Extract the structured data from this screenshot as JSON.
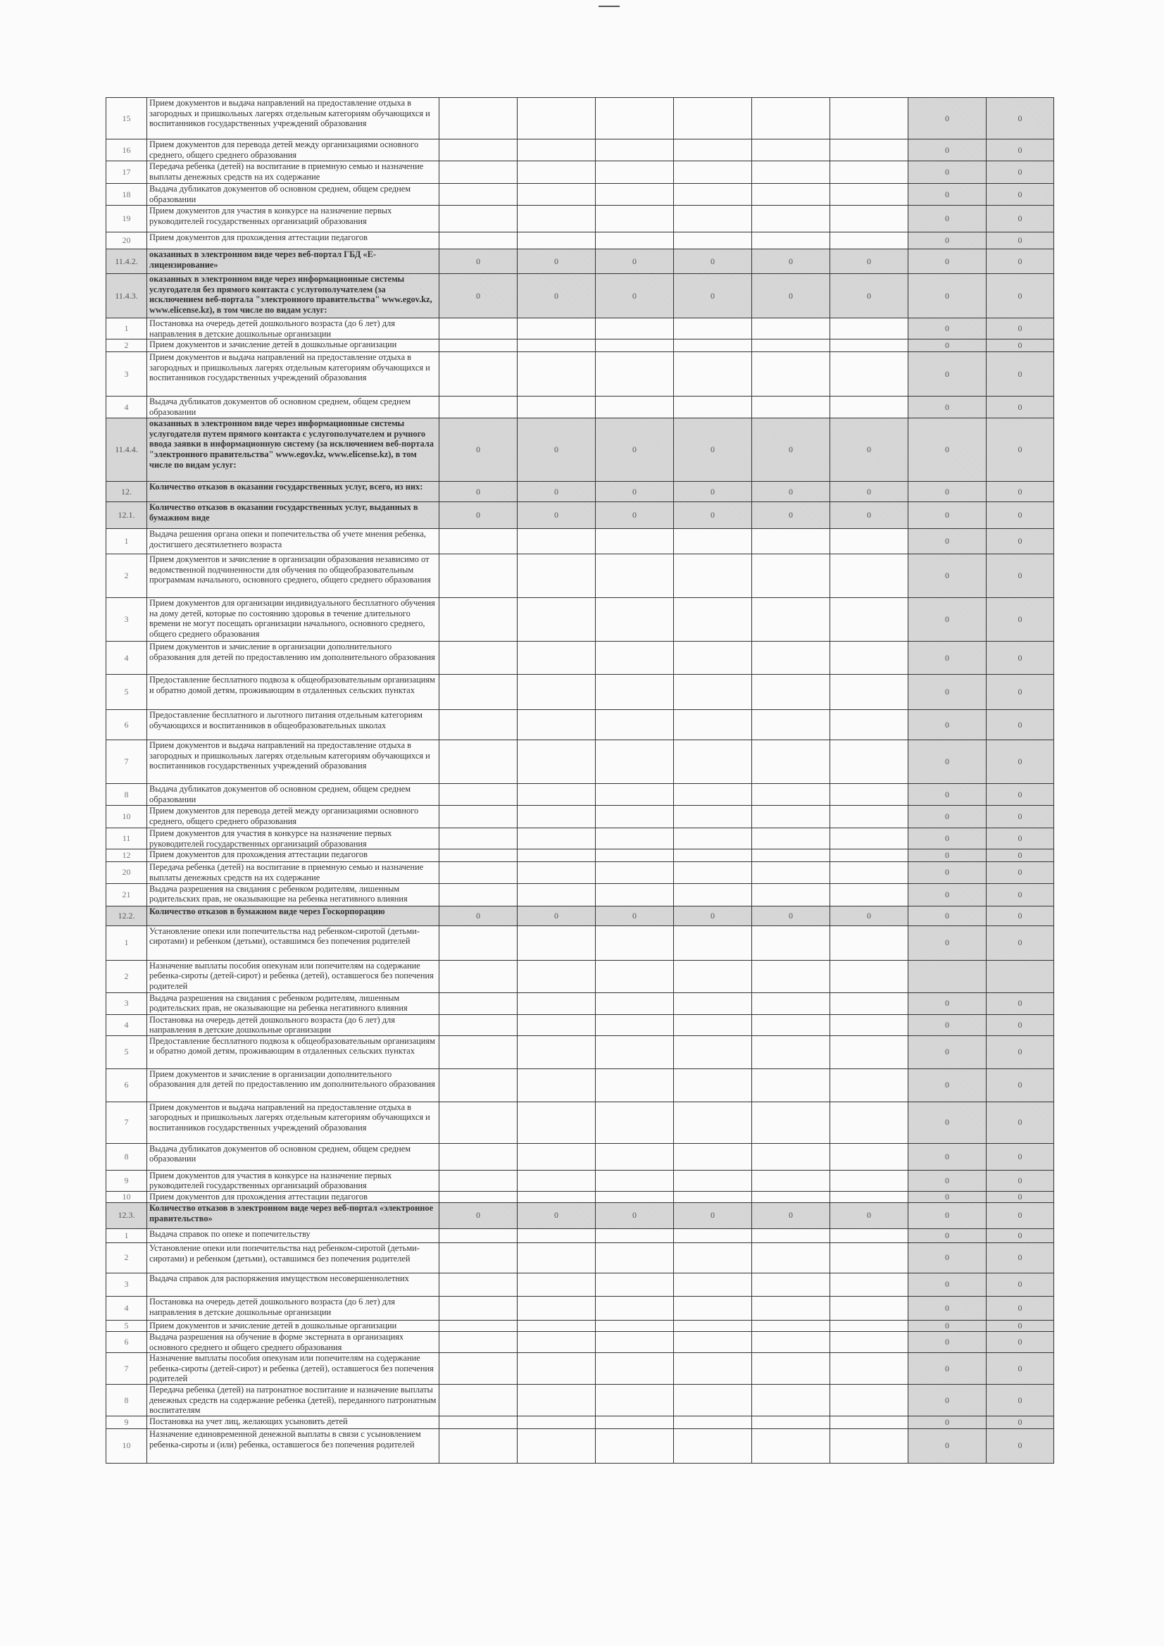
{
  "table": {
    "rows": [
      {
        "num": "15",
        "text": "Прием документов и выдача направлений на  предоставление отдыха в загородных и пришкольных лагерях отдельным категориям обучающихся и воспитанников государственных учреждений образования",
        "header": false,
        "values": [
          "",
          "",
          "",
          "",
          "",
          "",
          "0",
          "0"
        ]
      },
      {
        "num": "16",
        "text": "Прием документов для перевода детей между организациями основного среднего, общего среднего образования",
        "header": false,
        "values": [
          "",
          "",
          "",
          "",
          "",
          "",
          "0",
          "0"
        ]
      },
      {
        "num": "17",
        "text": "Передача ребенка (детей) на воспитание в приемную семью и назначение выплаты денежных средств на их содержание",
        "header": false,
        "values": [
          "",
          "",
          "",
          "",
          "",
          "",
          "0",
          "0"
        ]
      },
      {
        "num": "18",
        "text": "Выдача дубликатов документов об основном среднем, общем среднем образовании",
        "header": false,
        "values": [
          "",
          "",
          "",
          "",
          "",
          "",
          "0",
          "0"
        ]
      },
      {
        "num": "19",
        "text": "Прием документов для участия в конкурсе на назначение первых руководителей государственных организаций образования",
        "header": false,
        "values": [
          "",
          "",
          "",
          "",
          "",
          "",
          "0",
          "0"
        ]
      },
      {
        "num": "20",
        "text": "Прием документов для прохождения аттестации педагогов",
        "header": false,
        "values": [
          "",
          "",
          "",
          "",
          "",
          "",
          "0",
          "0"
        ]
      },
      {
        "num": "11.4.2.",
        "text": "оказанных в электронном виде через веб-портал ГБД «Е-лицензирование»",
        "header": true,
        "values": [
          "0",
          "0",
          "0",
          "0",
          "0",
          "0",
          "0",
          "0"
        ]
      },
      {
        "num": "11.4.3.",
        "text": "оказанных в электронном виде через информационные системы услугодателя без прямого контакта с услугополучателем (за исключением веб-портала \"электронного правительства\" www.egov.kz, www.elicense.kz), в том числе по видам услуг:",
        "header": true,
        "values": [
          "0",
          "0",
          "0",
          "0",
          "0",
          "0",
          "0",
          "0"
        ]
      },
      {
        "num": "1",
        "text": "Постановка на очередь детей дошкольного возраста (до 6 лет) для направления в детские дошкольные организации",
        "header": false,
        "values": [
          "",
          "",
          "",
          "",
          "",
          "",
          "0",
          "0"
        ]
      },
      {
        "num": "2",
        "text": "Прием документов и зачисление детей в дошкольные организации",
        "header": false,
        "values": [
          "",
          "",
          "",
          "",
          "",
          "",
          "0",
          "0"
        ]
      },
      {
        "num": "3",
        "text": "Прием документов и выдача направлений на  предоставление отдыха в загородных и пришкольных лагерях отдельным категориям обучающихся и воспитанников государственных учреждений образования",
        "header": false,
        "values": [
          "",
          "",
          "",
          "",
          "",
          "",
          "0",
          "0"
        ]
      },
      {
        "num": "4",
        "text": "Выдача дубликатов документов об основном среднем, общем среднем образовании",
        "header": false,
        "values": [
          "",
          "",
          "",
          "",
          "",
          "",
          "0",
          "0"
        ]
      },
      {
        "num": "11.4.4.",
        "text": "оказанных в электронном виде через информационные системы услугодателя путем прямого контакта с услугополучателем и ручного ввода заявки в информационную систему (за исключением веб-портала \"электронного правительства\" www.egov.kz, www.elicense.kz), в том числе по видам услуг:",
        "header": true,
        "values": [
          "0",
          "0",
          "0",
          "0",
          "0",
          "0",
          "0",
          "0"
        ]
      },
      {
        "num": "12.",
        "text": "Количество отказов в оказании государственных услуг, всего, из них:",
        "header": true,
        "values": [
          "0",
          "0",
          "0",
          "0",
          "0",
          "0",
          "0",
          "0"
        ]
      },
      {
        "num": "12.1.",
        "text": "Количество отказов в оказании государственных услуг, выданных в бумажном виде",
        "header": true,
        "values": [
          "0",
          "0",
          "0",
          "0",
          "0",
          "0",
          "0",
          "0"
        ]
      },
      {
        "num": "1",
        "text": "Выдача решения органа опеки и попечительства об учете мнения ребенка, достигшего десятилетнего возраста",
        "header": false,
        "values": [
          "",
          "",
          "",
          "",
          "",
          "",
          "0",
          "0"
        ]
      },
      {
        "num": "2",
        "text": "Прием документов и зачисление в организации образования независимо от ведомственной подчиненности для обучения по общеобразовательным программам начального, основного среднего, общего среднего образования",
        "header": false,
        "values": [
          "",
          "",
          "",
          "",
          "",
          "",
          "0",
          "0"
        ]
      },
      {
        "num": "3",
        "text": "Прием документов для организации индивидуального бесплатного обучения на дому детей, которые по состоянию здоровья в течение длительного времени не могут посещать организации начального, основного среднего, общего среднего образования",
        "header": false,
        "values": [
          "",
          "",
          "",
          "",
          "",
          "",
          "0",
          "0"
        ]
      },
      {
        "num": "4",
        "text": "Прием документов и зачисление в организации дополнительного образования для детей по предоставлению им дополнительного образования",
        "header": false,
        "values": [
          "",
          "",
          "",
          "",
          "",
          "",
          "0",
          "0"
        ]
      },
      {
        "num": "5",
        "text": "Предоставление бесплатного подвоза к общеобразовательным организациям и обратно домой детям, проживающим в отдаленных сельских пунктах",
        "header": false,
        "values": [
          "",
          "",
          "",
          "",
          "",
          "",
          "0",
          "0"
        ]
      },
      {
        "num": "6",
        "text": "Предоставление бесплатного и льготного питания отдельным категориям обучающихся и воспитанников в общеобразовательных школах",
        "header": false,
        "values": [
          "",
          "",
          "",
          "",
          "",
          "",
          "0",
          "0"
        ]
      },
      {
        "num": "7",
        "text": "Прием документов и выдача направлений на предоставление отдыха в загородных и пришкольных лагерях отдельным категориям обучающихся и воспитанников государственных учреждений образования",
        "header": false,
        "values": [
          "",
          "",
          "",
          "",
          "",
          "",
          "0",
          "0"
        ]
      },
      {
        "num": "8",
        "text": "Выдача дубликатов документов об основном среднем, общем среднем образовании",
        "header": false,
        "values": [
          "",
          "",
          "",
          "",
          "",
          "",
          "0",
          "0"
        ]
      },
      {
        "num": "10",
        "text": "Прием документов для перевода детей между организациями основного среднего, общего среднего образования",
        "header": false,
        "values": [
          "",
          "",
          "",
          "",
          "",
          "",
          "0",
          "0"
        ]
      },
      {
        "num": "11",
        "text": "Прием документов для участия в конкурсе на назначение первых руководителей государственных организаций образования",
        "header": false,
        "values": [
          "",
          "",
          "",
          "",
          "",
          "",
          "0",
          "0"
        ]
      },
      {
        "num": "12",
        "text": "Прием документов для прохождения аттестации педагогов",
        "header": false,
        "values": [
          "",
          "",
          "",
          "",
          "",
          "",
          "0",
          "0"
        ]
      },
      {
        "num": "20",
        "text": "Передача ребенка (детей) на воспитание в приемную семью и назначение выплаты денежных средств на их содержание",
        "header": false,
        "values": [
          "",
          "",
          "",
          "",
          "",
          "",
          "0",
          "0"
        ]
      },
      {
        "num": "21",
        "text": "Выдача разрешения на свидания с ребенком родителям, лишенным родительских прав, не оказывающие на ребенка негативного влияния",
        "header": false,
        "values": [
          "",
          "",
          "",
          "",
          "",
          "",
          "0",
          "0"
        ]
      },
      {
        "num": "12.2.",
        "text": "Количество отказов в бумажном виде через Госкорпорацию",
        "header": true,
        "values": [
          "0",
          "0",
          "0",
          "0",
          "0",
          "0",
          "0",
          "0"
        ]
      },
      {
        "num": "1",
        "text": "Установление опеки или попечительства над ребенком-сиротой (детьми-сиротами) и ребенком (детьми), оставшимся без попечения родителей",
        "header": false,
        "values": [
          "",
          "",
          "",
          "",
          "",
          "",
          "0",
          "0"
        ]
      },
      {
        "num": "2",
        "text": "Назначение выплаты пособия опекунам или попечителям на содержание ребенка-сироты (детей-сирот) и ребенка (детей), оставшегося без попечения родителей",
        "header": false,
        "values": [
          "",
          "",
          "",
          "",
          "",
          "",
          "",
          ""
        ]
      },
      {
        "num": "3",
        "text": "Выдача разрешения на свидания с ребенком родителям, лишенным родительских прав, не оказывающие на ребенка негативного влияния",
        "header": false,
        "values": [
          "",
          "",
          "",
          "",
          "",
          "",
          "0",
          "0"
        ]
      },
      {
        "num": "4",
        "text": "Постановка на очередь детей дошкольного возраста (до 6 лет) для направления в детские дошкольные организации",
        "header": false,
        "values": [
          "",
          "",
          "",
          "",
          "",
          "",
          "0",
          "0"
        ]
      },
      {
        "num": "5",
        "text": "Предоставление бесплатного подвоза к общеобразовательным организациям и обратно домой детям, проживающим в отдаленных сельских пунктах",
        "header": false,
        "values": [
          "",
          "",
          "",
          "",
          "",
          "",
          "0",
          "0"
        ]
      },
      {
        "num": "6",
        "text": "Прием документов и зачисление в организации дополнительного образования для детей по предоставлению им дополнительного образования",
        "header": false,
        "values": [
          "",
          "",
          "",
          "",
          "",
          "",
          "0",
          "0"
        ]
      },
      {
        "num": "7",
        "text": "Прием документов и выдача направлений на  предоставление отдыха в загородных и пришкольных лагерях отдельным категориям обучающихся и воспитанников государственных учреждений образования",
        "header": false,
        "values": [
          "",
          "",
          "",
          "",
          "",
          "",
          "0",
          "0"
        ]
      },
      {
        "num": "8",
        "text": "Выдача дубликатов документов об основном среднем, общем среднем образовании",
        "header": false,
        "values": [
          "",
          "",
          "",
          "",
          "",
          "",
          "0",
          "0"
        ]
      },
      {
        "num": "9",
        "text": "Прием документов для участия в конкурсе на назначение первых руководителей государственных организаций образования",
        "header": false,
        "values": [
          "",
          "",
          "",
          "",
          "",
          "",
          "0",
          "0"
        ]
      },
      {
        "num": "10",
        "text": "Прием документов для прохождения аттестации педагогов",
        "header": false,
        "values": [
          "",
          "",
          "",
          "",
          "",
          "",
          "0",
          "0"
        ]
      },
      {
        "num": "12.3.",
        "text": "Количество отказов в электронном виде через веб-портал «электронное правительство»",
        "header": true,
        "values": [
          "0",
          "0",
          "0",
          "0",
          "0",
          "0",
          "0",
          "0"
        ]
      },
      {
        "num": "1",
        "text": "Выдача справок по опеке и попечительству",
        "header": false,
        "values": [
          "",
          "",
          "",
          "",
          "",
          "",
          "0",
          "0"
        ]
      },
      {
        "num": "2",
        "text": "Установление опеки или попечительства над ребенком-сиротой (детьми-сиротами) и ребенком (детьми), оставшимся без попечения родителей",
        "header": false,
        "values": [
          "",
          "",
          "",
          "",
          "",
          "",
          "0",
          "0"
        ]
      },
      {
        "num": "3",
        "text": "Выдача справок для распоряжения имуществом несовершеннолетних",
        "header": false,
        "values": [
          "",
          "",
          "",
          "",
          "",
          "",
          "0",
          "0"
        ]
      },
      {
        "num": "4",
        "text": "Постановка на очередь детей дошкольного возраста (до 6 лет) для направления в детские дошкольные организации",
        "header": false,
        "values": [
          "",
          "",
          "",
          "",
          "",
          "",
          "0",
          "0"
        ]
      },
      {
        "num": "5",
        "text": "Прием документов и зачисление детей в дошкольные организации",
        "header": false,
        "values": [
          "",
          "",
          "",
          "",
          "",
          "",
          "0",
          "0"
        ]
      },
      {
        "num": "6",
        "text": "Выдача разрешения на обучение в форме экстерната в организациях основного среднего и общего среднего образования",
        "header": false,
        "values": [
          "",
          "",
          "",
          "",
          "",
          "",
          "0",
          "0"
        ]
      },
      {
        "num": "7",
        "text": "Назначение выплаты пособия опекунам или попечителям на содержание ребенка-сироты (детей-сирот) и ребенка (детей), оставшегося без попечения родителей",
        "header": false,
        "values": [
          "",
          "",
          "",
          "",
          "",
          "",
          "0",
          "0"
        ]
      },
      {
        "num": "8",
        "text": "Передача ребенка (детей) на патронатное воспитание и назначение выплаты денежных средств на содержание ребенка (детей), переданного патронатным воспитателям",
        "header": false,
        "values": [
          "",
          "",
          "",
          "",
          "",
          "",
          "0",
          "0"
        ]
      },
      {
        "num": "9",
        "text": "Постановка на учет лиц, желающих усыновить детей",
        "header": false,
        "values": [
          "",
          "",
          "",
          "",
          "",
          "",
          "0",
          "0"
        ]
      },
      {
        "num": "10",
        "text": "Назначение единовременной денежной выплаты в связи с усыновлением ребенка-сироты и (или) ребенка, оставшегося без попечения родителей",
        "header": false,
        "values": [
          "",
          "",
          "",
          "",
          "",
          "",
          "0",
          "0"
        ]
      }
    ]
  }
}
